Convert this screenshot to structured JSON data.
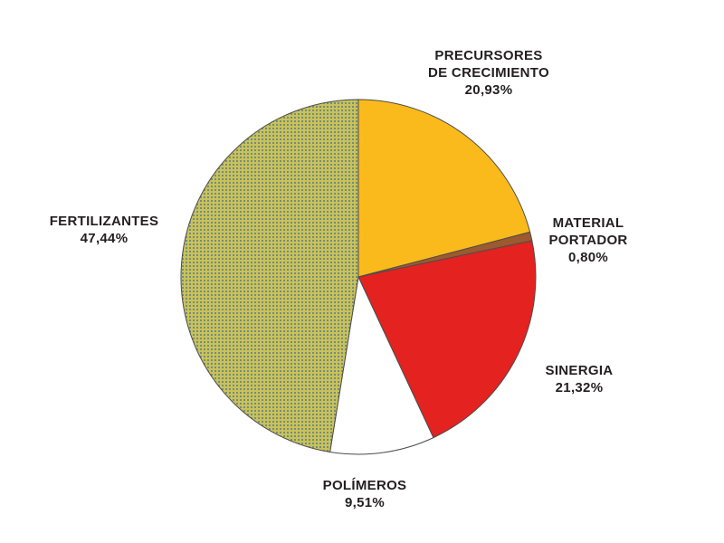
{
  "chart_data": {
    "type": "pie",
    "slices": [
      {
        "label_lines": [
          "PRECURSORES",
          "DE CRECIMIENTO"
        ],
        "value": 20.93,
        "value_text": "20,93%",
        "color": "#fbba1c",
        "pattern": "solid"
      },
      {
        "label_lines": [
          "MATERIAL",
          "PORTADOR"
        ],
        "value": 0.8,
        "value_text": "0,80%",
        "color": "#9c5a2e",
        "pattern": "solid"
      },
      {
        "label_lines": [
          "SINERGIA"
        ],
        "value": 21.32,
        "value_text": "21,32%",
        "color": "#e42220",
        "pattern": "solid"
      },
      {
        "label_lines": [
          "POLÍMEROS"
        ],
        "value": 9.51,
        "value_text": "9,51%",
        "color": "#ffffff",
        "pattern": "solid"
      },
      {
        "label_lines": [
          "FERTILIZANTES"
        ],
        "value": 47.44,
        "value_text": "47,44%",
        "color": "#c9c25a",
        "pattern": "dotted",
        "dot_color": "#5a7a86"
      }
    ],
    "start_angle_deg": 0,
    "direction": "clockwise",
    "edge_color": "#4d4d4d"
  }
}
